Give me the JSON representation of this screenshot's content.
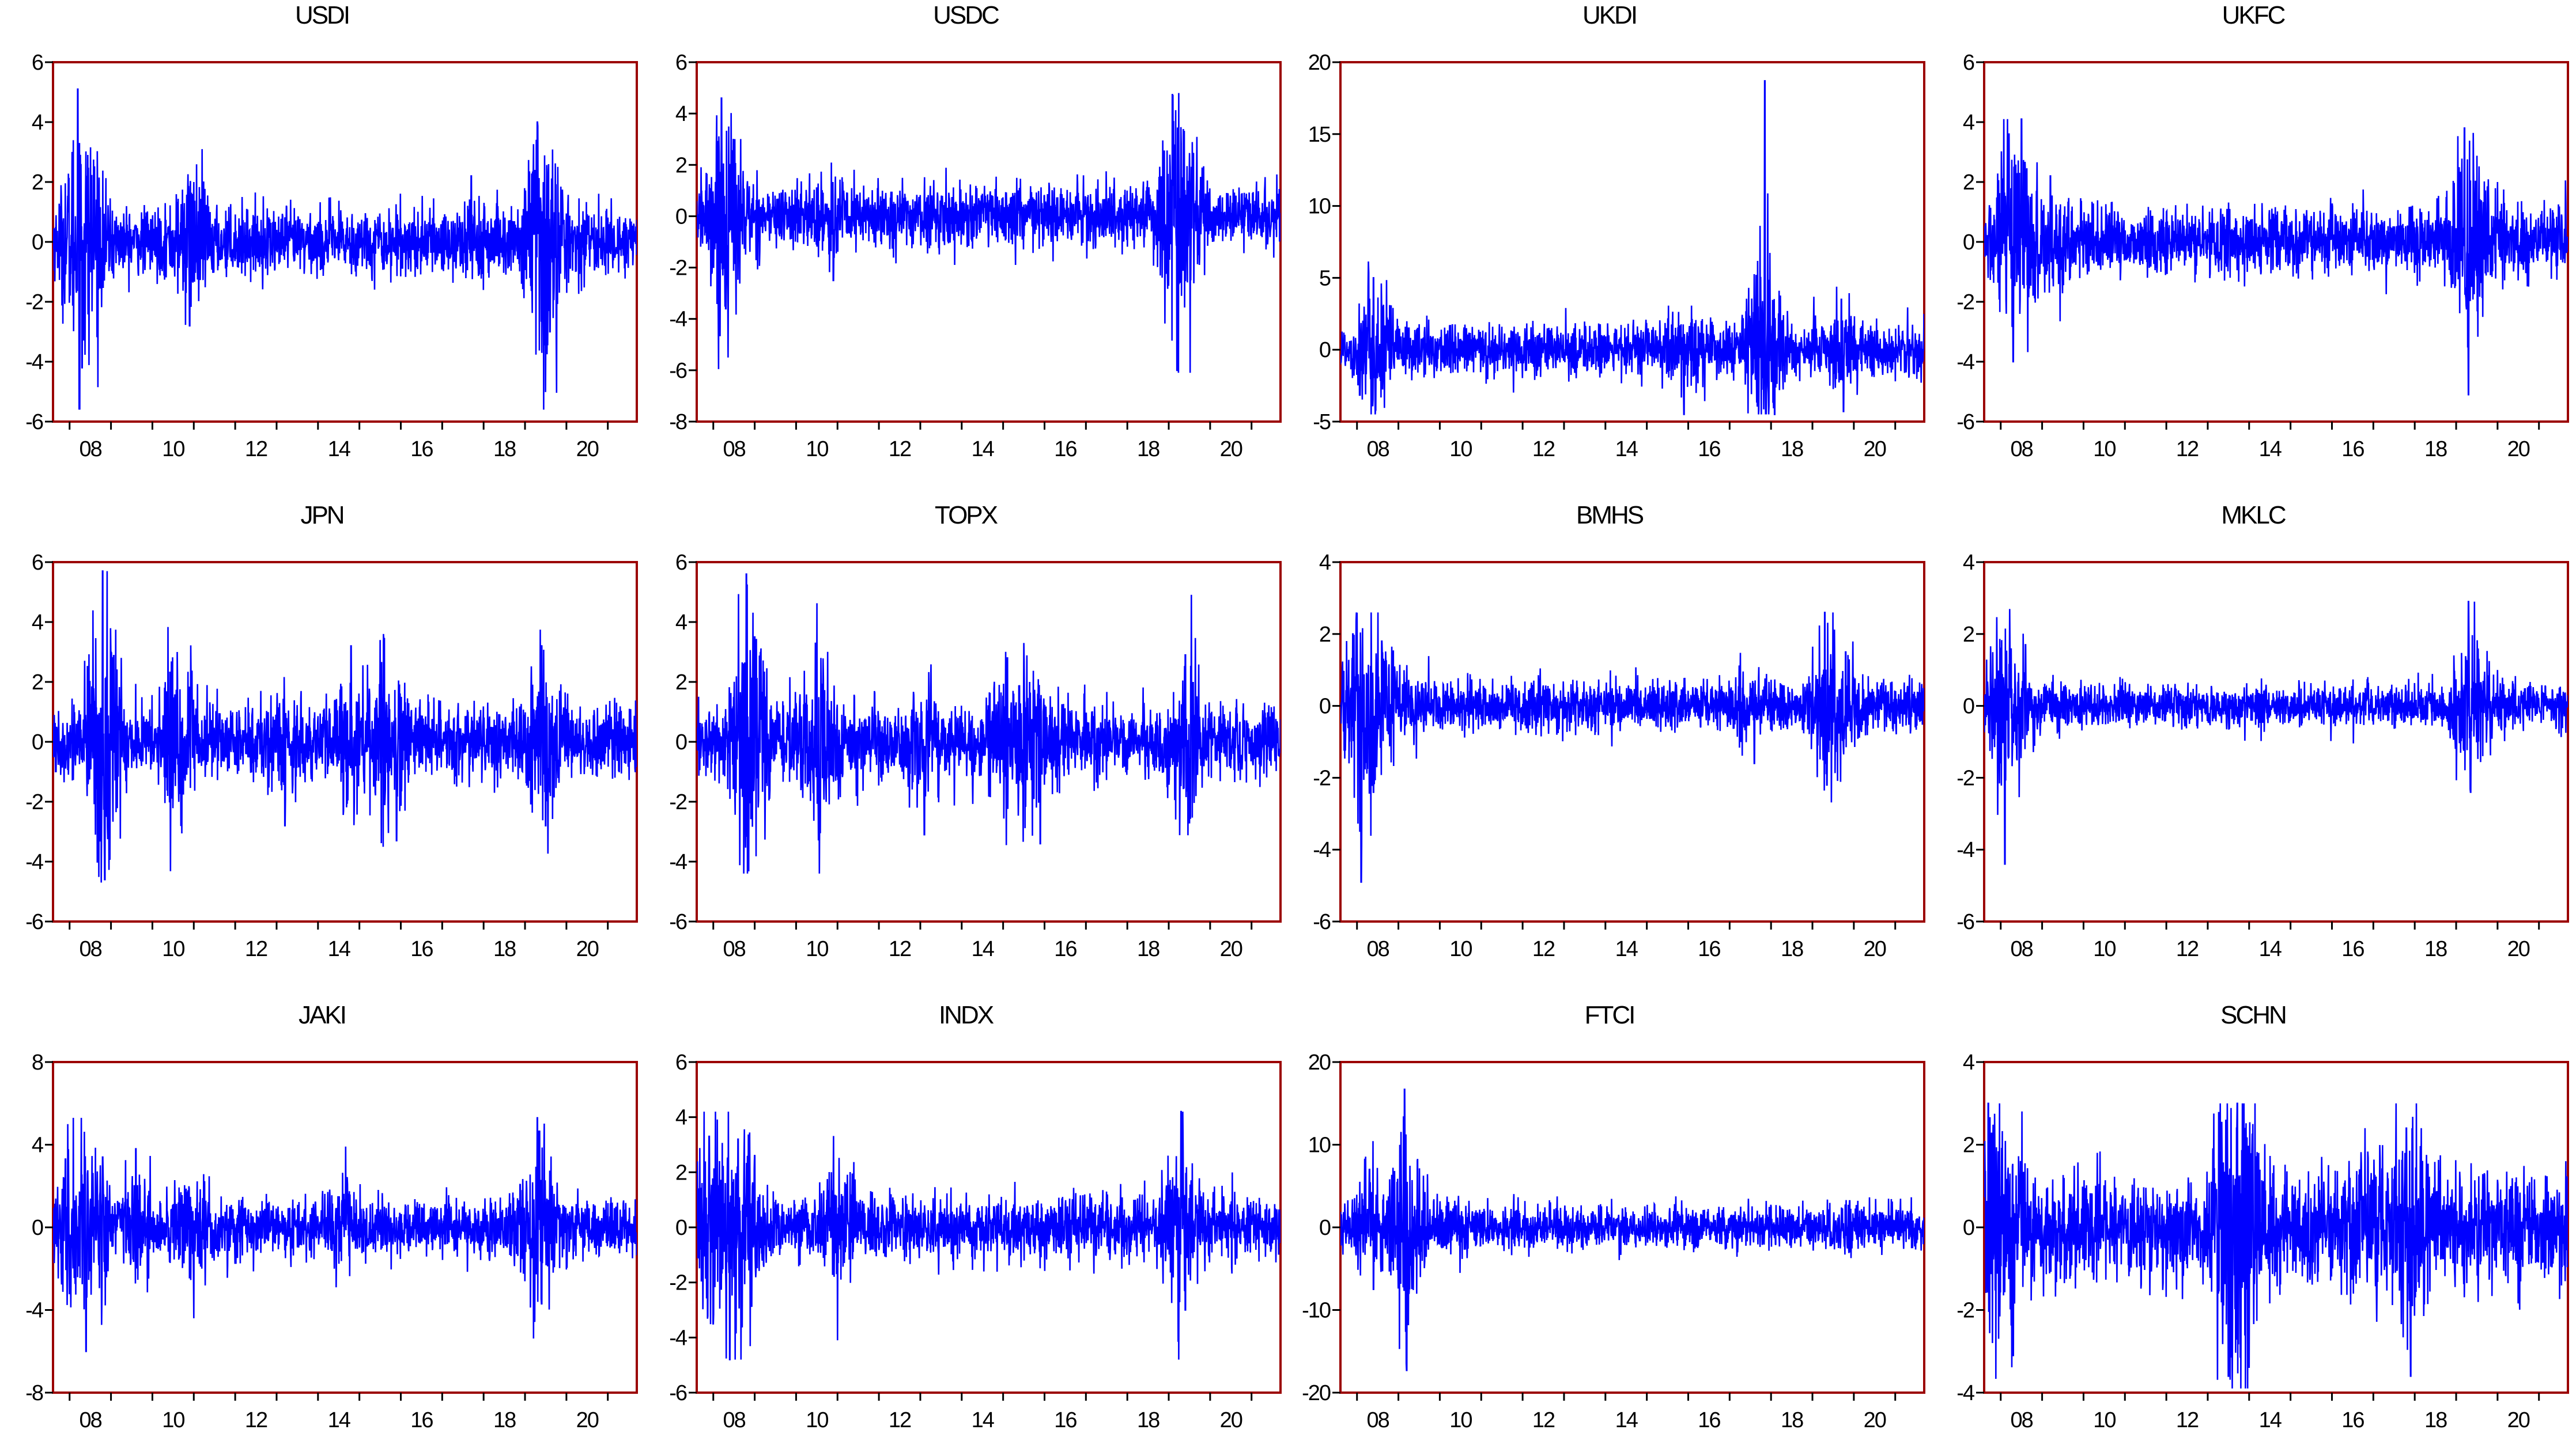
{
  "colors": {
    "frame": "#9b0000",
    "series": "#0000ff",
    "axis": "#000000",
    "background": "#ffffff"
  },
  "chart_data": [
    {
      "type": "line",
      "title": "USDI",
      "ylim": [
        -6,
        6
      ],
      "yticks": [
        -6,
        -4,
        -2,
        0,
        2,
        4,
        6
      ],
      "xticks": [
        "08",
        "10",
        "12",
        "14",
        "16",
        "18",
        "20"
      ],
      "x": [
        2007.6,
        2021.7
      ],
      "baseline": 0,
      "amp": 0.55,
      "pos_max": 5.2,
      "neg_min": -5.6,
      "spikes": [
        [
          2008.2,
          5.1
        ],
        [
          2008.3,
          -4.2
        ],
        [
          2008.6,
          2.5
        ],
        [
          2010.9,
          -2.8
        ],
        [
          2011.0,
          2.0
        ],
        [
          2017.7,
          2.2
        ],
        [
          2019.3,
          4.0
        ],
        [
          2019.45,
          -5.6
        ],
        [
          2019.6,
          -3.0
        ]
      ]
    },
    {
      "type": "line",
      "title": "USDC",
      "ylim": [
        -8,
        6
      ],
      "yticks": [
        -8,
        -6,
        -4,
        -2,
        0,
        2,
        4,
        6
      ],
      "xticks": [
        "08",
        "10",
        "12",
        "14",
        "16",
        "18",
        "20"
      ],
      "x": [
        2007.6,
        2021.7
      ],
      "baseline": 0,
      "amp": 0.6,
      "pos_max": 4.8,
      "neg_min": -6.1,
      "spikes": [
        [
          2008.2,
          4.6
        ],
        [
          2008.3,
          -3.6
        ],
        [
          2008.5,
          2.8
        ],
        [
          2010.9,
          -2.5
        ],
        [
          2019.1,
          4.7
        ],
        [
          2019.2,
          -6.0
        ],
        [
          2019.4,
          -2.5
        ]
      ]
    },
    {
      "type": "line",
      "title": "UKDI",
      "ylim": [
        -5,
        20
      ],
      "yticks": [
        -5,
        0,
        5,
        10,
        15,
        20
      ],
      "xticks": [
        "08",
        "10",
        "12",
        "14",
        "16",
        "18",
        "20"
      ],
      "x": [
        2007.6,
        2021.7
      ],
      "baseline": 0,
      "amp": 0.9,
      "pos_max": 18.8,
      "neg_min": -4.5,
      "spikes": [
        [
          2008.4,
          5.0
        ],
        [
          2008.45,
          -4.2
        ],
        [
          2008.6,
          3.0
        ],
        [
          2015.9,
          -4.5
        ],
        [
          2017.85,
          18.7
        ],
        [
          2019.7,
          3.5
        ],
        [
          2019.75,
          -4.3
        ]
      ]
    },
    {
      "type": "line",
      "title": "UKFC",
      "ylim": [
        -6,
        6
      ],
      "yticks": [
        -6,
        -4,
        -2,
        0,
        2,
        4,
        6
      ],
      "xticks": [
        "08",
        "10",
        "12",
        "14",
        "16",
        "18",
        "20"
      ],
      "x": [
        2007.6,
        2021.7
      ],
      "baseline": 0,
      "amp": 0.55,
      "pos_max": 4.1,
      "neg_min": -5.2,
      "spikes": [
        [
          2008.2,
          3.6
        ],
        [
          2008.3,
          -4.0
        ],
        [
          2008.5,
          4.1
        ],
        [
          2009.2,
          2.2
        ],
        [
          2019.2,
          3.8
        ],
        [
          2019.3,
          -5.1
        ],
        [
          2020.0,
          2.0
        ]
      ]
    },
    {
      "type": "line",
      "title": "JPN",
      "ylim": [
        -6,
        6
      ],
      "yticks": [
        -6,
        -4,
        -2,
        0,
        2,
        4,
        6
      ],
      "xticks": [
        "08",
        "10",
        "12",
        "14",
        "16",
        "18",
        "20"
      ],
      "x": [
        2007.6,
        2021.7
      ],
      "baseline": 0,
      "amp": 0.6,
      "pos_max": 5.7,
      "neg_min": -4.7,
      "spikes": [
        [
          2008.8,
          5.7
        ],
        [
          2008.85,
          -4.6
        ],
        [
          2009.0,
          3.0
        ],
        [
          2010.6,
          -3.9
        ],
        [
          2010.6,
          3.0
        ],
        [
          2013.2,
          -2.8
        ],
        [
          2014.8,
          3.2
        ],
        [
          2015.5,
          3.4
        ],
        [
          2015.9,
          -3.3
        ],
        [
          2019.4,
          3.2
        ],
        [
          2019.5,
          -2.8
        ]
      ]
    },
    {
      "type": "line",
      "title": "TOPX",
      "ylim": [
        -6,
        6
      ],
      "yticks": [
        -6,
        -4,
        -2,
        0,
        2,
        4,
        6
      ],
      "xticks": [
        "08",
        "10",
        "12",
        "14",
        "16",
        "18",
        "20"
      ],
      "x": [
        2007.6,
        2021.7
      ],
      "baseline": 0,
      "amp": 0.6,
      "pos_max": 5.6,
      "neg_min": -4.4,
      "spikes": [
        [
          2008.8,
          5.6
        ],
        [
          2008.85,
          -4.3
        ],
        [
          2009.0,
          3.5
        ],
        [
          2010.6,
          -4.3
        ],
        [
          2010.6,
          2.8
        ],
        [
          2013.1,
          -3.1
        ],
        [
          2015.1,
          2.8
        ],
        [
          2015.5,
          3.3
        ],
        [
          2015.9,
          -3.4
        ],
        [
          2019.4,
          2.9
        ],
        [
          2019.5,
          -2.7
        ]
      ]
    },
    {
      "type": "line",
      "title": "BMHS",
      "ylim": [
        -6,
        4
      ],
      "yticks": [
        -6,
        -4,
        -2,
        0,
        2,
        4
      ],
      "xticks": [
        "08",
        "10",
        "12",
        "14",
        "16",
        "18",
        "20"
      ],
      "x": [
        2007.6,
        2021.7
      ],
      "baseline": 0,
      "amp": 0.35,
      "pos_max": 2.6,
      "neg_min": -4.9,
      "spikes": [
        [
          2007.9,
          2.0
        ],
        [
          2008.1,
          -4.9
        ],
        [
          2008.4,
          -2.4
        ],
        [
          2008.6,
          1.8
        ],
        [
          2019.3,
          2.6
        ],
        [
          2019.35,
          -2.2
        ],
        [
          2019.8,
          1.5
        ],
        [
          2017.6,
          -1.6
        ]
      ]
    },
    {
      "type": "line",
      "title": "MKLC",
      "ylim": [
        -6,
        4
      ],
      "yticks": [
        -6,
        -4,
        -2,
        0,
        2,
        4
      ],
      "xticks": [
        "08",
        "10",
        "12",
        "14",
        "16",
        "18",
        "20"
      ],
      "x": [
        2007.6,
        2021.7
      ],
      "baseline": 0,
      "amp": 0.3,
      "pos_max": 2.9,
      "neg_min": -4.4,
      "spikes": [
        [
          2008.0,
          1.6
        ],
        [
          2008.1,
          -4.4
        ],
        [
          2008.6,
          1.7
        ],
        [
          2019.3,
          2.9
        ],
        [
          2019.35,
          -2.4
        ],
        [
          2020.0,
          1.0
        ]
      ]
    },
    {
      "type": "line",
      "title": "JAKI",
      "ylim": [
        -8,
        8
      ],
      "yticks": [
        -8,
        -4,
        0,
        4,
        8
      ],
      "xticks": [
        "08",
        "10",
        "12",
        "14",
        "16",
        "18",
        "20"
      ],
      "x": [
        2007.6,
        2021.7
      ],
      "baseline": 0,
      "amp": 0.7,
      "pos_max": 5.3,
      "neg_min": -6.0,
      "spikes": [
        [
          2007.9,
          3.3
        ],
        [
          2008.0,
          -3.2
        ],
        [
          2008.4,
          -6.0
        ],
        [
          2008.8,
          3.4
        ],
        [
          2009.6,
          3.8
        ],
        [
          2011.0,
          -4.4
        ],
        [
          2014.7,
          2.4
        ],
        [
          2019.3,
          5.3
        ],
        [
          2019.4,
          -3.7
        ]
      ]
    },
    {
      "type": "line",
      "title": "INDX",
      "ylim": [
        -6,
        6
      ],
      "yticks": [
        -6,
        -4,
        -2,
        0,
        2,
        4,
        6
      ],
      "xticks": [
        "08",
        "10",
        "12",
        "14",
        "16",
        "18",
        "20"
      ],
      "x": [
        2007.6,
        2021.7
      ],
      "baseline": 0,
      "amp": 0.55,
      "pos_max": 4.2,
      "neg_min": -4.8,
      "spikes": [
        [
          2007.9,
          3.3
        ],
        [
          2008.0,
          -3.5
        ],
        [
          2008.4,
          -4.8
        ],
        [
          2008.6,
          3.2
        ],
        [
          2009.0,
          2.6
        ],
        [
          2011.0,
          -4.1
        ],
        [
          2019.3,
          4.2
        ],
        [
          2019.4,
          -3.0
        ]
      ]
    },
    {
      "type": "line",
      "title": "FTCI",
      "ylim": [
        -20,
        20
      ],
      "yticks": [
        -20,
        -10,
        0,
        10,
        20
      ],
      "xticks": [
        "08",
        "10",
        "12",
        "14",
        "16",
        "18",
        "20"
      ],
      "x": [
        2007.6,
        2021.7
      ],
      "baseline": 0,
      "amp": 1.3,
      "pos_max": 16.8,
      "neg_min": -17.3,
      "spikes": [
        [
          2008.3,
          7.0
        ],
        [
          2008.4,
          -7.5
        ],
        [
          2009.15,
          16.7
        ],
        [
          2009.2,
          -17.3
        ],
        [
          2010.2,
          3.0
        ],
        [
          2019.9,
          3.2
        ]
      ]
    },
    {
      "type": "line",
      "title": "SCHN",
      "ylim": [
        -4,
        4
      ],
      "yticks": [
        -4,
        -2,
        0,
        2,
        4
      ],
      "xticks": [
        "08",
        "10",
        "12",
        "14",
        "16",
        "18",
        "20"
      ],
      "x": [
        2007.6,
        2021.7
      ],
      "baseline": 0,
      "amp": 0.65,
      "pos_max": 3.0,
      "neg_min": -3.9,
      "spikes": [
        [
          2007.7,
          3.0
        ],
        [
          2007.8,
          -2.8
        ],
        [
          2008.3,
          -3.1
        ],
        [
          2013.5,
          -3.6
        ],
        [
          2013.7,
          2.4
        ],
        [
          2013.8,
          -3.9
        ],
        [
          2014.0,
          -3.4
        ],
        [
          2016.8,
          2.4
        ],
        [
          2017.8,
          2.4
        ],
        [
          2017.9,
          -3.6
        ]
      ]
    }
  ]
}
